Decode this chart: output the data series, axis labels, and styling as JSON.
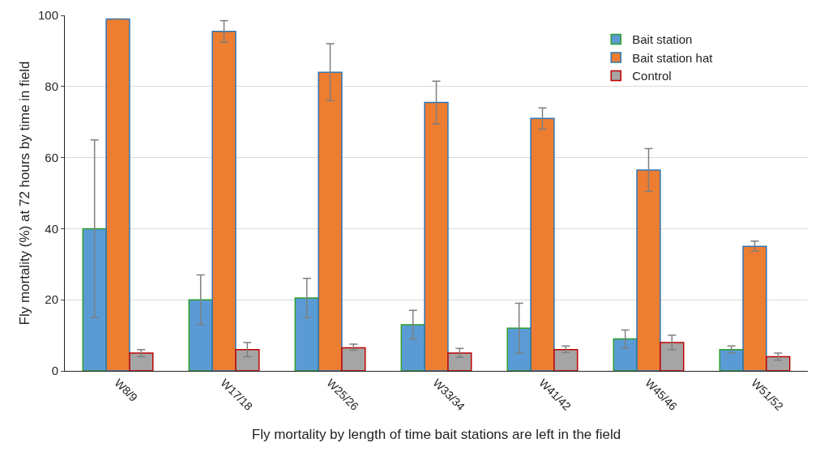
{
  "chart_data": {
    "type": "bar",
    "xlabel": "Fly mortality by length of time bait stations are left in the field",
    "ylabel": "Fly mortality (%) at 72 hours by time in field",
    "categories": [
      "W8/9",
      "W17/18",
      "W25/26",
      "W33/34",
      "W41/42",
      "W45/46",
      "W51/52"
    ],
    "series": [
      {
        "name": "Bait station",
        "color": "#5b9bd5",
        "values": [
          40,
          20,
          20.5,
          13,
          12,
          9,
          6
        ],
        "errors": [
          [
            15,
            65
          ],
          [
            13,
            27
          ],
          [
            15,
            26
          ],
          [
            9,
            17
          ],
          [
            5,
            19
          ],
          [
            6.5,
            11.5
          ],
          [
            5,
            7
          ]
        ]
      },
      {
        "name": "Bait station hat",
        "color": "#ed7d31",
        "values": [
          99,
          95.5,
          84,
          75.5,
          71,
          56.5,
          35
        ],
        "errors": [
          null,
          [
            92.5,
            98.5
          ],
          [
            76,
            92
          ],
          [
            69.5,
            81.5
          ],
          [
            68,
            74
          ],
          [
            50.5,
            62.5
          ],
          [
            33.7,
            36.5
          ]
        ]
      },
      {
        "name": "Control",
        "color": "#a5a5a5",
        "values": [
          5,
          6,
          6.5,
          5,
          6,
          8,
          4
        ],
        "errors": [
          [
            4,
            6
          ],
          [
            4,
            8
          ],
          [
            5.8,
            7.5
          ],
          [
            3.8,
            6.3
          ],
          [
            5.2,
            7
          ],
          [
            6,
            10
          ],
          [
            3,
            5
          ]
        ]
      }
    ],
    "ylim": [
      0,
      100
    ],
    "yticks": [
      0,
      20,
      40,
      60,
      80,
      100
    ],
    "grid": "y",
    "legend": "top right"
  }
}
